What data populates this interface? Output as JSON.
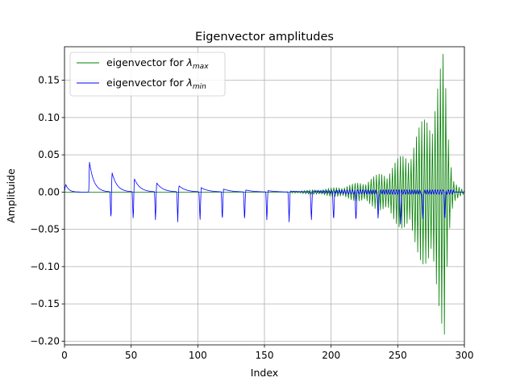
{
  "chart_data": {
    "type": "line",
    "title": "Eigenvector amplitudes",
    "xlabel": "Index",
    "ylabel": "Amplituide",
    "xlim": [
      0,
      300
    ],
    "ylim": [
      -0.205,
      0.195
    ],
    "grid": true,
    "legend_position": "top-left",
    "x_ticks": [
      0,
      50,
      100,
      150,
      200,
      250,
      300
    ],
    "y_ticks": [
      -0.2,
      -0.15,
      -0.1,
      -0.05,
      0.0,
      0.05,
      0.1,
      0.15
    ],
    "x_tick_labels": [
      "0",
      "50",
      "100",
      "150",
      "200",
      "250",
      "300"
    ],
    "y_tick_labels": [
      "−0.20",
      "−0.15",
      "−0.10",
      "−0.05",
      "0.00",
      "0.05",
      "0.10",
      "0.15"
    ],
    "series": [
      {
        "name": "eigenvector for λ_max",
        "legend_prefix": "eigenvector for ",
        "legend_symbol": "λ",
        "legend_subscript": "max",
        "color": "#008000",
        "shape": "oscillation growing toward the right end, peak amplitude about 0.18 near index 282, minimum about -0.19 near index 283",
        "key_points": [
          [
            0,
            0
          ],
          [
            175,
            0
          ],
          [
            200,
            0.003
          ],
          [
            225,
            0.01
          ],
          [
            250,
            0.035
          ],
          [
            265,
            0.1
          ],
          [
            266,
            -0.095
          ],
          [
            281,
            0.178
          ],
          [
            283,
            -0.187
          ],
          [
            285,
            0.175
          ],
          [
            300,
            0
          ]
        ]
      },
      {
        "name": "eigenvector for λ_min",
        "legend_prefix": "eigenvector for ",
        "legend_symbol": "λ",
        "legend_subscript": "min",
        "color": "#0000ff",
        "shape": "periodic spikes every ~16.7 indices with positive decaying tails that shrink toward the right",
        "key_points": [
          [
            2,
            0.015
          ],
          [
            19,
            0.047
          ],
          [
            34,
            -0.04
          ],
          [
            35,
            0.034
          ],
          [
            52,
            -0.04
          ],
          [
            52.5,
            0.025
          ],
          [
            69,
            -0.04
          ],
          [
            69.5,
            0.02
          ],
          [
            86,
            -0.04
          ],
          [
            86.5,
            0.015
          ],
          [
            103,
            -0.04
          ],
          [
            103.5,
            0.012
          ],
          [
            120,
            -0.04
          ],
          [
            137,
            -0.04
          ],
          [
            153,
            -0.04
          ],
          [
            170,
            -0.04
          ],
          [
            187,
            -0.04
          ],
          [
            204,
            -0.04
          ],
          [
            221,
            -0.04
          ],
          [
            237,
            -0.04
          ],
          [
            254,
            -0.04
          ],
          [
            271,
            -0.04
          ],
          [
            288,
            -0.035
          ]
        ]
      }
    ]
  }
}
